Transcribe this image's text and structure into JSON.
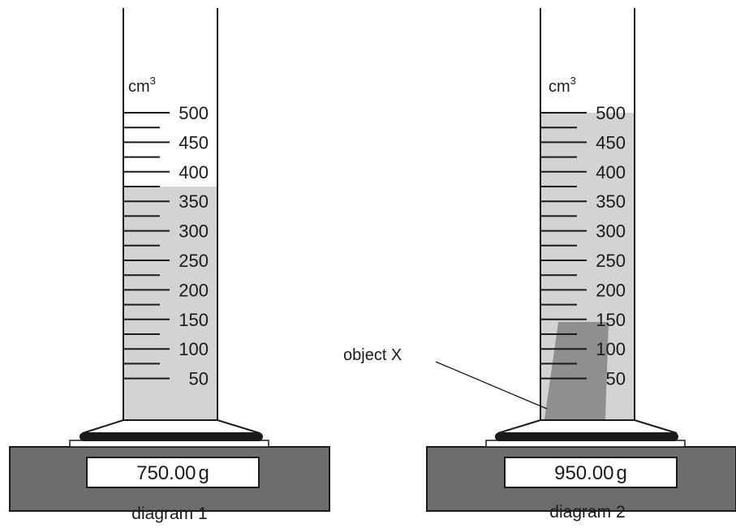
{
  "unit_label": "cm",
  "unit_superscript": "3",
  "scale_labels": [
    "500",
    "450",
    "400",
    "350",
    "300",
    "250",
    "200",
    "150",
    "100",
    "50"
  ],
  "diagram1": {
    "caption": "diagram 1",
    "water_level_cm3": 375,
    "balance_reading": "750.00",
    "balance_unit": "g"
  },
  "diagram2": {
    "caption": "diagram 2",
    "water_level_cm3": 500,
    "balance_reading": "950.00",
    "balance_unit": "g",
    "object_label": "object X",
    "object_top_cm3": 150
  },
  "colors": {
    "water": "#d3d3d3",
    "object": "#8f8f8f",
    "balance_base": "#6d6d6d",
    "outline": "#1a1a1a"
  }
}
